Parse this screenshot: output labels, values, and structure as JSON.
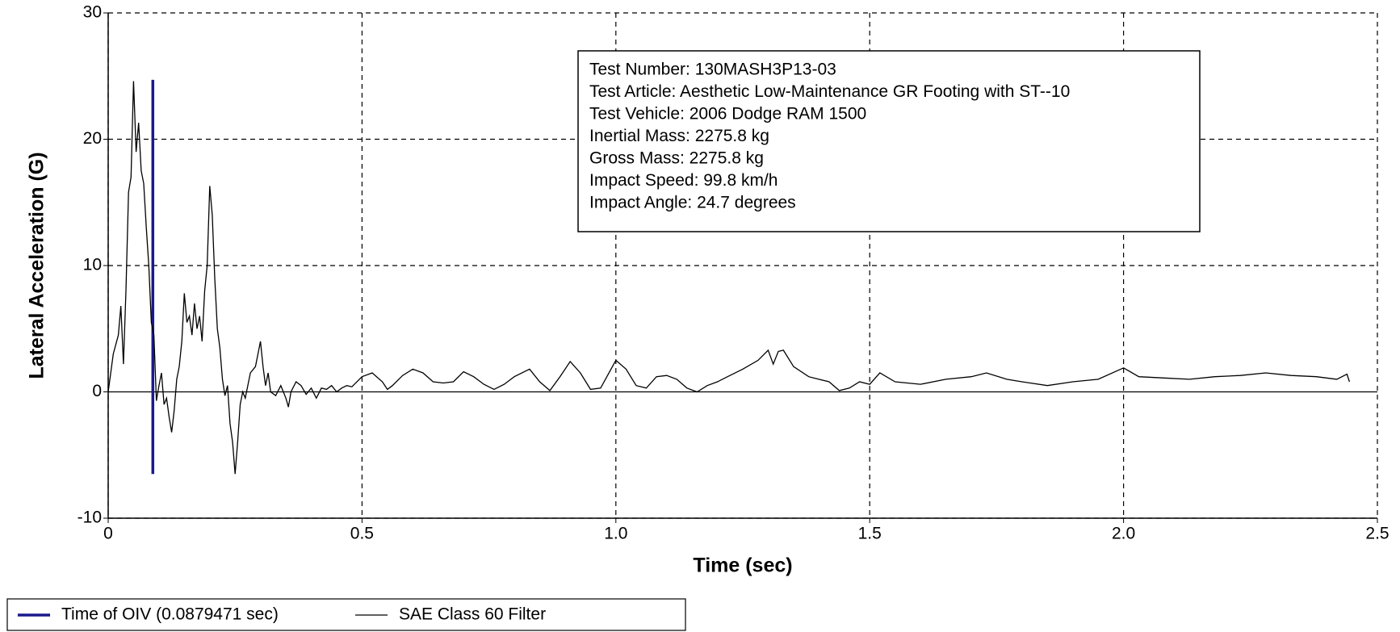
{
  "chart_data": {
    "type": "line",
    "xlabel": "Time (sec)",
    "ylabel": "Lateral Acceleration (G)",
    "xlim": [
      0,
      2.5
    ],
    "ylim": [
      -10,
      30
    ],
    "xticks": [
      0,
      0.5,
      {
        "value": 1,
        "label": "1.0"
      },
      1.5,
      {
        "value": 2,
        "label": "2.0"
      },
      2.5
    ],
    "yticks": [
      -10,
      0,
      10,
      20,
      30
    ],
    "grid": true,
    "legend": "bottom-left",
    "annotation": [
      "Test Number: 130MASH3P13-03",
      "Test Article: Aesthetic Low-Maintenance GR Footing with ST--10",
      "Test Vehicle: 2006 Dodge RAM 1500",
      "Inertial Mass: 2275.8 kg",
      "Gross Mass: 2275.8 kg",
      "Impact Speed: 99.8 km/h",
      "Impact Angle: 24.7 degrees"
    ],
    "series": [
      {
        "name": "Time of OIV (0.0879471 sec)",
        "color": "#1a1a8c",
        "x": [
          0.0879471,
          0.0879471
        ],
        "values": [
          -6.5,
          24.7
        ]
      },
      {
        "name": "SAE Class 60 Filter",
        "color": "#000000",
        "x": [
          0,
          0.01,
          0.02,
          0.025,
          0.03,
          0.035,
          0.04,
          0.045,
          0.05,
          0.055,
          0.06,
          0.065,
          0.07,
          0.075,
          0.08,
          0.085,
          0.09,
          0.095,
          0.1,
          0.105,
          0.11,
          0.115,
          0.12,
          0.125,
          0.13,
          0.135,
          0.14,
          0.145,
          0.15,
          0.155,
          0.16,
          0.165,
          0.17,
          0.175,
          0.18,
          0.185,
          0.19,
          0.195,
          0.2,
          0.205,
          0.21,
          0.215,
          0.22,
          0.225,
          0.23,
          0.235,
          0.24,
          0.245,
          0.25,
          0.255,
          0.26,
          0.265,
          0.27,
          0.28,
          0.29,
          0.3,
          0.305,
          0.31,
          0.315,
          0.32,
          0.33,
          0.34,
          0.35,
          0.355,
          0.36,
          0.37,
          0.38,
          0.39,
          0.4,
          0.41,
          0.42,
          0.43,
          0.44,
          0.45,
          0.46,
          0.47,
          0.48,
          0.5,
          0.52,
          0.54,
          0.55,
          0.56,
          0.58,
          0.6,
          0.62,
          0.64,
          0.66,
          0.68,
          0.7,
          0.72,
          0.74,
          0.76,
          0.78,
          0.8,
          0.83,
          0.85,
          0.87,
          0.89,
          0.91,
          0.93,
          0.95,
          0.97,
          1.0,
          1.02,
          1.04,
          1.06,
          1.08,
          1.1,
          1.12,
          1.14,
          1.16,
          1.18,
          1.2,
          1.22,
          1.25,
          1.28,
          1.3,
          1.31,
          1.32,
          1.33,
          1.35,
          1.38,
          1.4,
          1.42,
          1.44,
          1.46,
          1.48,
          1.5,
          1.52,
          1.55,
          1.6,
          1.65,
          1.7,
          1.73,
          1.77,
          1.8,
          1.85,
          1.9,
          1.95,
          2.0,
          2.03,
          2.08,
          2.13,
          2.18,
          2.23,
          2.28,
          2.33,
          2.38,
          2.42,
          2.44,
          2.445
        ],
        "values": [
          0,
          3,
          4.5,
          6.8,
          2.2,
          8,
          15.8,
          17,
          24.6,
          19,
          21.3,
          17.5,
          16.5,
          13,
          10,
          5.5,
          4.5,
          -0.7,
          0.5,
          1.5,
          -1,
          -0.5,
          -2,
          -3.2,
          -1.5,
          1,
          2,
          4,
          7.8,
          5.5,
          6,
          4.5,
          7,
          5,
          6,
          4,
          8,
          10,
          16.3,
          14,
          9,
          5,
          3.5,
          1,
          -0.3,
          0.5,
          -2.5,
          -4,
          -6.5,
          -4,
          -1,
          0,
          -0.5,
          1.5,
          2,
          4,
          2,
          0.5,
          1.5,
          0,
          -0.3,
          0.5,
          -0.5,
          -1.2,
          0,
          0.8,
          0.5,
          -0.2,
          0.3,
          -0.5,
          0.3,
          0.2,
          0.5,
          0,
          0.3,
          0.5,
          0.4,
          1.2,
          1.5,
          0.8,
          0.2,
          0.5,
          1.3,
          1.8,
          1.5,
          0.8,
          0.7,
          0.8,
          1.6,
          1.2,
          0.6,
          0.2,
          0.6,
          1.2,
          1.8,
          0.8,
          0.1,
          1.2,
          2.4,
          1.5,
          0.2,
          0.3,
          2.5,
          1.8,
          0.5,
          0.3,
          1.2,
          1.3,
          1.0,
          0.3,
          0.0,
          0.5,
          0.8,
          1.2,
          1.8,
          2.5,
          3.3,
          2.2,
          3.2,
          3.3,
          2,
          1.2,
          1.0,
          0.8,
          0.1,
          0.3,
          0.8,
          0.6,
          1.5,
          0.8,
          0.6,
          1.0,
          1.2,
          1.5,
          1.0,
          0.8,
          0.5,
          0.8,
          1.0,
          1.9,
          1.2,
          1.1,
          1.0,
          1.2,
          1.3,
          1.5,
          1.3,
          1.2,
          1.0,
          1.4,
          0.8
        ]
      }
    ]
  }
}
